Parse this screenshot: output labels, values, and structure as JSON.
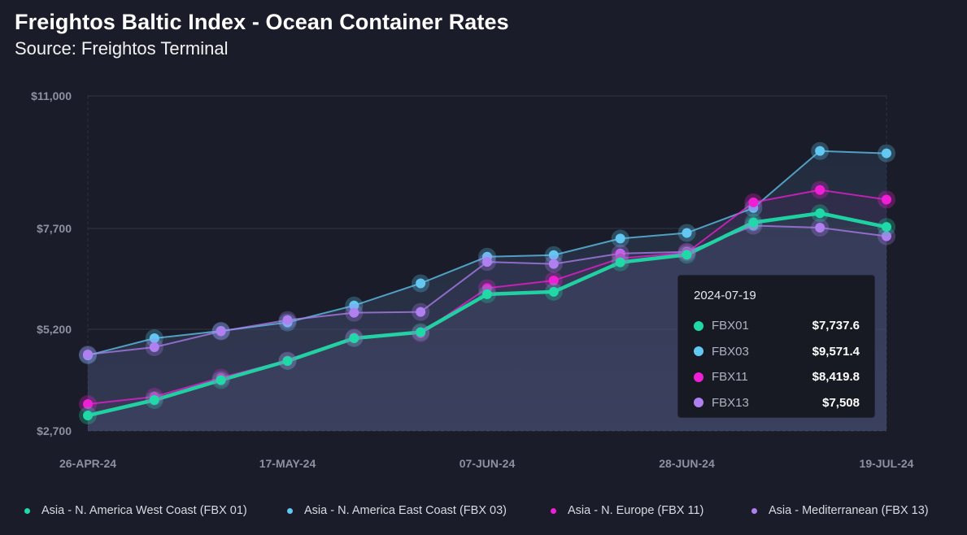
{
  "header": {
    "title": "Freightos Baltic Index - Ocean Container Rates",
    "subtitle": "Source: Freightos Terminal"
  },
  "chart_data": {
    "type": "line",
    "title": "Freightos Baltic Index - Ocean Container Rates",
    "subtitle": "Source: Freightos Terminal",
    "xlabel": "",
    "ylabel": "",
    "x": [
      "2024-04-26",
      "2024-05-03",
      "2024-05-10",
      "2024-05-17",
      "2024-05-24",
      "2024-05-31",
      "2024-06-07",
      "2024-06-14",
      "2024-06-21",
      "2024-06-28",
      "2024-07-05",
      "2024-07-12",
      "2024-07-19"
    ],
    "x_tick_labels": [
      {
        "index": 0,
        "label": "26-APR-24"
      },
      {
        "index": 3,
        "label": "17-MAY-24"
      },
      {
        "index": 6,
        "label": "07-JUN-24"
      },
      {
        "index": 9,
        "label": "28-JUN-24"
      },
      {
        "index": 12,
        "label": "19-JUL-24"
      }
    ],
    "y_ticks": [
      {
        "value": 2700,
        "label": "$2,700"
      },
      {
        "value": 5200,
        "label": "$5,200"
      },
      {
        "value": 7700,
        "label": "$7,700"
      },
      {
        "value": 11000,
        "label": "$11,000"
      }
    ],
    "ylim": [
      2700,
      11000
    ],
    "grid": true,
    "legend_position": "bottom",
    "series": [
      {
        "id": "FBX01",
        "name": "Asia - N. America West Coast (FBX 01)",
        "color": "#1fd9a6",
        "values": [
          3080,
          3460,
          3950,
          4420,
          4980,
          5130,
          6070,
          6130,
          6860,
          7050,
          7850,
          8080,
          7737.6
        ]
      },
      {
        "id": "FBX03",
        "name": "Asia - N. America East Coast (FBX 03)",
        "color": "#62c8f2",
        "values": [
          4560,
          4980,
          5160,
          5370,
          5790,
          6340,
          7000,
          7040,
          7450,
          7590,
          8210,
          9630,
          9571.4
        ]
      },
      {
        "id": "FBX11",
        "name": "Asia - N. Europe (FBX 11)",
        "color": "#f01fd6",
        "values": [
          3360,
          3540,
          4010,
          4430,
          5000,
          5100,
          6220,
          6410,
          6960,
          7100,
          8350,
          8660,
          8419.8
        ]
      },
      {
        "id": "FBX13",
        "name": "Asia - Mediterranean (FBX 13)",
        "color": "#b07ff0",
        "values": [
          4580,
          4760,
          5150,
          5430,
          5610,
          5630,
          6870,
          6820,
          7080,
          7120,
          7770,
          7720,
          7508
        ]
      }
    ]
  },
  "tooltip": {
    "date": "2024-07-19",
    "rows": [
      {
        "name": "FBX01",
        "value": "$7,737.6",
        "color": "#1fd9a6"
      },
      {
        "name": "FBX03",
        "value": "$9,571.4",
        "color": "#62c8f2"
      },
      {
        "name": "FBX11",
        "value": "$8,419.8",
        "color": "#f01fd6"
      },
      {
        "name": "FBX13",
        "value": "$7,508",
        "color": "#b07ff0"
      }
    ]
  },
  "legend": [
    {
      "label": "Asia - N. America West Coast (FBX 01)",
      "color": "#1fd9a6"
    },
    {
      "label": "Asia - N. America East Coast (FBX 03)",
      "color": "#62c8f2"
    },
    {
      "label": "Asia - N. Europe (FBX 11)",
      "color": "#f01fd6"
    },
    {
      "label": "Asia - Mediterranean (FBX 13)",
      "color": "#b07ff0"
    }
  ]
}
